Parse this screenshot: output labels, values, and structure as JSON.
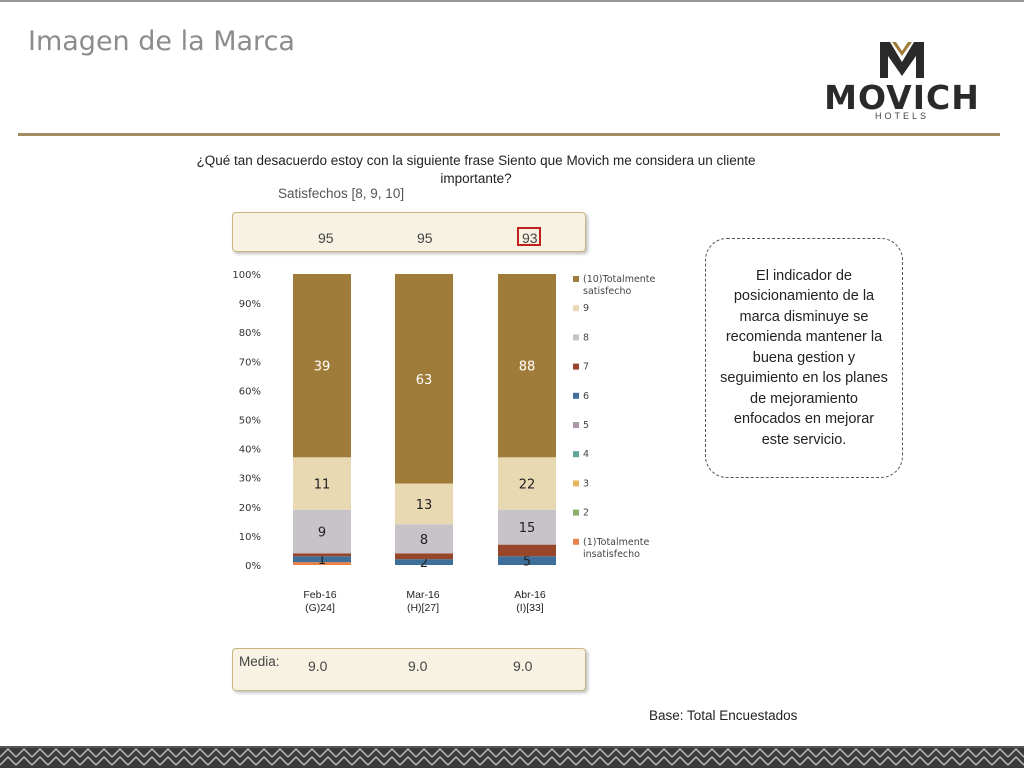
{
  "slide": {
    "title": "Imagen de la Marca",
    "question": "¿Qué tan desacuerdo estoy con la siguiente frase Siento que Movich me considera un cliente importante?",
    "subtitle": "Satisfechos [8, 9, 10]",
    "base_note": "Base: Total Encuestados"
  },
  "logo": {
    "name": "MOVICH",
    "sub": "HOTELS"
  },
  "satisfied": {
    "values": [
      "95",
      "95",
      "93"
    ],
    "highlight_index": 2,
    "highlight_color": "#c0201e"
  },
  "media": {
    "label": "Media:",
    "values": [
      "9.0",
      "9.0",
      "9.0"
    ]
  },
  "note": {
    "text": "El indicador de posicionamiento de la marca disminuye se recomienda mantener la buena gestion y seguimiento en los planes de mejoramiento enfocados en mejorar este servicio."
  },
  "chart_data": {
    "type": "bar",
    "stacked": true,
    "categories": [
      "Feb-16\n(G)24]",
      "Mar-16\n(H)[27]",
      "Abr-16\n(I)[33]"
    ],
    "ylim": [
      0,
      100
    ],
    "yticks": [
      "0%",
      "10%",
      "20%",
      "30%",
      "40%",
      "50%",
      "60%",
      "70%",
      "80%",
      "90%",
      "100%"
    ],
    "legend_position": "right",
    "series": [
      {
        "name": "(1)Totalmente insatisfecho",
        "color": "#e8814a",
        "values": [
          1,
          0,
          0
        ],
        "labels": [
          "",
          "",
          ""
        ]
      },
      {
        "name": "2",
        "color": "#8fae6e",
        "values": [
          0,
          0,
          0
        ],
        "labels": [
          "",
          "",
          ""
        ]
      },
      {
        "name": "3",
        "color": "#e6b65d",
        "values": [
          0,
          0,
          0
        ],
        "labels": [
          "",
          "",
          ""
        ]
      },
      {
        "name": "4",
        "color": "#5fa59a",
        "values": [
          0,
          0,
          0
        ],
        "labels": [
          "",
          "",
          ""
        ]
      },
      {
        "name": "5",
        "color": "#a999a8",
        "values": [
          0,
          0,
          0
        ],
        "labels": [
          "",
          "",
          ""
        ]
      },
      {
        "name": "6",
        "color": "#3e6f9a",
        "values": [
          2,
          2,
          3
        ],
        "labels": [
          "1",
          "2",
          "5"
        ]
      },
      {
        "name": "7",
        "color": "#98462a",
        "values": [
          1,
          2,
          4
        ],
        "labels": [
          "",
          "",
          ""
        ]
      },
      {
        "name": "8",
        "color": "#c7c3c8",
        "values": [
          15,
          10,
          12
        ],
        "labels": [
          "9",
          "8",
          "15"
        ]
      },
      {
        "name": "9",
        "color": "#e9d9b3",
        "values": [
          18,
          14,
          18
        ],
        "labels": [
          "11",
          "13",
          "22"
        ]
      },
      {
        "name": "(10)Totalmente satisfecho",
        "color": "#a07c3a",
        "values": [
          63,
          72,
          63
        ],
        "labels": [
          "39",
          "63",
          "88"
        ]
      }
    ]
  }
}
